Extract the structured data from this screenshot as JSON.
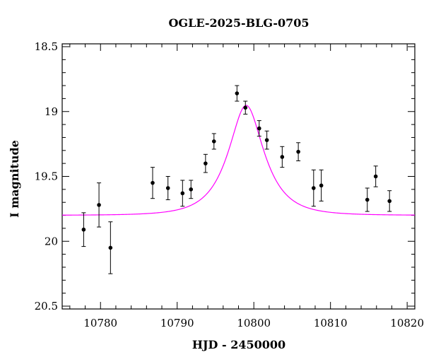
{
  "chart_data": {
    "type": "scatter",
    "title": "OGLE-2025-BLG-0705",
    "xlabel": "HJD - 2450000",
    "ylabel": "I magnitude",
    "xlim": [
      10775,
      10821
    ],
    "ylim": [
      18.5,
      20.5
    ],
    "y_inverted": true,
    "grid": false,
    "x_ticks": [
      10780,
      10790,
      10800,
      10810,
      10820
    ],
    "x_tick_labels": [
      "10780",
      "10790",
      "10800",
      "10810",
      "10820"
    ],
    "y_ticks": [
      18.5,
      19,
      19.5,
      20,
      20.5
    ],
    "y_tick_labels": [
      "18.5",
      "19",
      "19.5",
      "20",
      "20.5"
    ],
    "points": [
      {
        "x": 10777.8,
        "y": 19.91,
        "err": 0.13
      },
      {
        "x": 10779.8,
        "y": 19.72,
        "err": 0.17
      },
      {
        "x": 10781.3,
        "y": 20.05,
        "err": 0.2
      },
      {
        "x": 10786.8,
        "y": 19.55,
        "err": 0.12
      },
      {
        "x": 10788.8,
        "y": 19.59,
        "err": 0.09
      },
      {
        "x": 10790.7,
        "y": 19.63,
        "err": 0.1
      },
      {
        "x": 10791.8,
        "y": 19.6,
        "err": 0.07
      },
      {
        "x": 10793.7,
        "y": 19.4,
        "err": 0.07
      },
      {
        "x": 10794.8,
        "y": 19.23,
        "err": 0.06
      },
      {
        "x": 10797.8,
        "y": 18.86,
        "err": 0.06
      },
      {
        "x": 10798.9,
        "y": 18.97,
        "err": 0.05
      },
      {
        "x": 10800.7,
        "y": 19.13,
        "err": 0.06
      },
      {
        "x": 10801.7,
        "y": 19.22,
        "err": 0.07
      },
      {
        "x": 10803.7,
        "y": 19.35,
        "err": 0.08
      },
      {
        "x": 10805.8,
        "y": 19.31,
        "err": 0.07
      },
      {
        "x": 10807.8,
        "y": 19.59,
        "err": 0.14
      },
      {
        "x": 10808.8,
        "y": 19.57,
        "err": 0.12
      },
      {
        "x": 10814.8,
        "y": 19.68,
        "err": 0.09
      },
      {
        "x": 10815.9,
        "y": 19.5,
        "err": 0.08
      },
      {
        "x": 10817.7,
        "y": 19.69,
        "err": 0.08
      }
    ],
    "model": {
      "type": "microlensing_fit",
      "color": "#ff00ff",
      "t0": 10799.0,
      "u0": 0.5,
      "tE": 4.0,
      "baseline_mag": 19.8
    },
    "marker_color": "#000000"
  }
}
